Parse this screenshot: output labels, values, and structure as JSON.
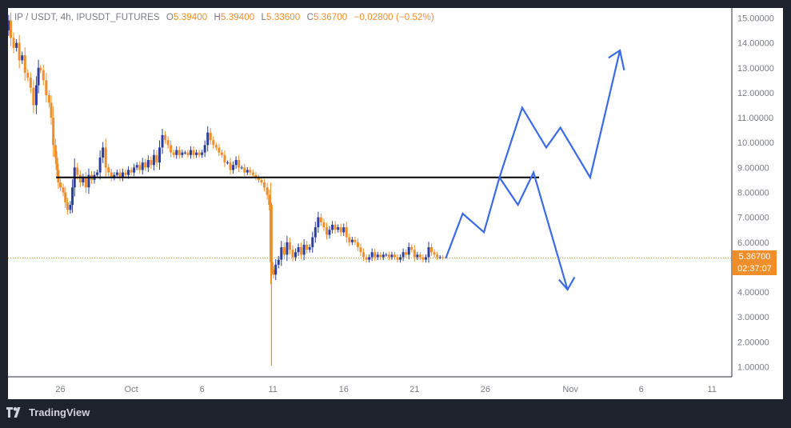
{
  "header": {
    "symbol": "IP / USDT, 4h, IPUSDT_FUTURES",
    "open_label": "O",
    "open": "5.39400",
    "high_label": "H",
    "high": "5.39400",
    "low_label": "L",
    "low": "5.33600",
    "close_label": "C",
    "close": "5.36700",
    "change": "−0.02800 (−0.52%)"
  },
  "price_tag": {
    "price": "5.36700",
    "countdown": "02:37:07"
  },
  "footer": {
    "brand": "TradingView"
  },
  "colors": {
    "up": "#2a3f9e",
    "down": "#ef8e2a",
    "projection": "#3b6ae6",
    "support_line": "#000000",
    "price_line": "#ef8e2a",
    "axis_text": "#787b86"
  },
  "chart_data": {
    "type": "candlestick",
    "interval": "4h",
    "y_axis": {
      "min": 0.6,
      "max": 15.4,
      "ticks": [
        "15.00000",
        "14.00000",
        "13.00000",
        "12.00000",
        "11.00000",
        "10.00000",
        "9.00000",
        "8.00000",
        "7.00000",
        "6.00000",
        "5.00000",
        "4.00000",
        "3.00000",
        "2.00000",
        "1.00000"
      ]
    },
    "x_axis": {
      "ticks": [
        {
          "label": "26",
          "day": 0
        },
        {
          "label": "Oct",
          "day": 5
        },
        {
          "label": "6",
          "day": 10
        },
        {
          "label": "11",
          "day": 15
        },
        {
          "label": "16",
          "day": 20
        },
        {
          "label": "21",
          "day": 25
        },
        {
          "label": "26",
          "day": 30
        },
        {
          "label": "Nov",
          "day": 36
        },
        {
          "label": "6",
          "day": 41
        },
        {
          "label": "11",
          "day": 46
        }
      ],
      "range_days": [
        -3.7,
        47.4
      ]
    },
    "price_path": [
      [
        -3.7,
        14.5
      ],
      [
        -3.6,
        14.9
      ],
      [
        -3.4,
        14.2
      ],
      [
        -3.2,
        13.8
      ],
      [
        -3.0,
        14.0
      ],
      [
        -2.8,
        13.3
      ],
      [
        -2.6,
        13.5
      ],
      [
        -2.4,
        12.8
      ],
      [
        -2.2,
        12.6
      ],
      [
        -2.0,
        12.2
      ],
      [
        -1.8,
        11.5
      ],
      [
        -1.6,
        12.3
      ],
      [
        -1.5,
        13.0
      ],
      [
        -1.3,
        12.9
      ],
      [
        -1.1,
        12.5
      ],
      [
        -0.9,
        11.9
      ],
      [
        -0.7,
        11.6
      ],
      [
        -0.6,
        11.0
      ],
      [
        -0.4,
        9.9
      ],
      [
        -0.3,
        9.4
      ],
      [
        -0.2,
        8.9
      ],
      [
        -0.1,
        8.4
      ],
      [
        0.1,
        8.2
      ],
      [
        0.3,
        8.0
      ],
      [
        0.4,
        7.6
      ],
      [
        0.6,
        7.3
      ],
      [
        0.8,
        7.5
      ],
      [
        0.9,
        8.2
      ],
      [
        1.1,
        9.0
      ],
      [
        1.3,
        8.7
      ],
      [
        1.5,
        8.4
      ],
      [
        1.7,
        8.6
      ],
      [
        1.9,
        8.2
      ],
      [
        2.1,
        8.7
      ],
      [
        2.3,
        8.5
      ],
      [
        2.5,
        8.7
      ],
      [
        2.7,
        8.8
      ],
      [
        2.9,
        9.4
      ],
      [
        3.1,
        9.8
      ],
      [
        3.3,
        9.0
      ],
      [
        3.5,
        8.8
      ],
      [
        3.7,
        8.6
      ],
      [
        3.9,
        8.7
      ],
      [
        4.1,
        8.8
      ],
      [
        4.3,
        8.6
      ],
      [
        4.5,
        8.8
      ],
      [
        4.7,
        8.7
      ],
      [
        4.9,
        8.9
      ],
      [
        5.1,
        8.8
      ],
      [
        5.3,
        9.0
      ],
      [
        5.5,
        9.1
      ],
      [
        5.7,
        8.9
      ],
      [
        5.9,
        9.2
      ],
      [
        6.1,
        9.0
      ],
      [
        6.3,
        9.3
      ],
      [
        6.5,
        9.1
      ],
      [
        6.7,
        9.5
      ],
      [
        6.9,
        9.2
      ],
      [
        7.1,
        9.8
      ],
      [
        7.3,
        10.3
      ],
      [
        7.5,
        10.1
      ],
      [
        7.7,
        9.9
      ],
      [
        7.9,
        9.6
      ],
      [
        8.1,
        9.5
      ],
      [
        8.3,
        9.7
      ],
      [
        8.5,
        9.5
      ],
      [
        8.7,
        9.6
      ],
      [
        8.9,
        9.6
      ],
      [
        9.1,
        9.5
      ],
      [
        9.3,
        9.7
      ],
      [
        9.5,
        9.5
      ],
      [
        9.7,
        9.6
      ],
      [
        9.9,
        9.5
      ],
      [
        10.1,
        9.6
      ],
      [
        10.3,
        9.9
      ],
      [
        10.5,
        10.4
      ],
      [
        10.7,
        10.1
      ],
      [
        10.9,
        9.9
      ],
      [
        11.1,
        9.8
      ],
      [
        11.3,
        9.6
      ],
      [
        11.5,
        9.5
      ],
      [
        11.7,
        9.2
      ],
      [
        11.9,
        9.2
      ],
      [
        12.1,
        8.9
      ],
      [
        12.3,
        9.1
      ],
      [
        12.5,
        9.3
      ],
      [
        12.7,
        9.0
      ],
      [
        12.9,
        9.0
      ],
      [
        13.1,
        8.8
      ],
      [
        13.3,
        8.9
      ],
      [
        13.5,
        8.8
      ],
      [
        13.7,
        8.7
      ],
      [
        13.9,
        8.6
      ],
      [
        14.1,
        8.5
      ],
      [
        14.3,
        8.4
      ],
      [
        14.5,
        8.2
      ],
      [
        14.7,
        7.9
      ],
      [
        14.8,
        7.5
      ],
      [
        14.9,
        5.2
      ],
      [
        15.0,
        4.9
      ],
      [
        15.1,
        4.7
      ],
      [
        15.3,
        5.1
      ],
      [
        15.5,
        5.3
      ],
      [
        15.7,
        5.8
      ],
      [
        15.9,
        5.5
      ],
      [
        16.1,
        6.0
      ],
      [
        16.3,
        5.7
      ],
      [
        16.5,
        5.4
      ],
      [
        16.7,
        5.6
      ],
      [
        16.9,
        5.8
      ],
      [
        17.1,
        5.5
      ],
      [
        17.3,
        5.9
      ],
      [
        17.5,
        5.7
      ],
      [
        17.7,
        5.8
      ],
      [
        17.9,
        6.2
      ],
      [
        18.1,
        6.6
      ],
      [
        18.3,
        7.0
      ],
      [
        18.5,
        6.8
      ],
      [
        18.7,
        6.6
      ],
      [
        18.9,
        6.3
      ],
      [
        19.1,
        6.5
      ],
      [
        19.3,
        6.7
      ],
      [
        19.5,
        6.5
      ],
      [
        19.7,
        6.6
      ],
      [
        19.9,
        6.4
      ],
      [
        20.1,
        6.6
      ],
      [
        20.3,
        6.2
      ],
      [
        20.5,
        6.0
      ],
      [
        20.7,
        6.1
      ],
      [
        20.9,
        6.0
      ],
      [
        21.1,
        5.8
      ],
      [
        21.3,
        5.6
      ],
      [
        21.5,
        5.4
      ],
      [
        21.7,
        5.3
      ],
      [
        21.9,
        5.4
      ],
      [
        22.1,
        5.6
      ],
      [
        22.3,
        5.4
      ],
      [
        22.5,
        5.5
      ],
      [
        22.7,
        5.4
      ],
      [
        22.9,
        5.5
      ],
      [
        23.1,
        5.5
      ],
      [
        23.3,
        5.4
      ],
      [
        23.5,
        5.5
      ],
      [
        23.7,
        5.4
      ],
      [
        23.9,
        5.3
      ],
      [
        24.1,
        5.4
      ],
      [
        24.3,
        5.6
      ],
      [
        24.5,
        5.5
      ],
      [
        24.7,
        5.8
      ],
      [
        24.9,
        5.7
      ],
      [
        25.1,
        5.4
      ],
      [
        25.3,
        5.5
      ],
      [
        25.5,
        5.4
      ],
      [
        25.7,
        5.3
      ],
      [
        25.9,
        5.4
      ],
      [
        26.1,
        5.8
      ],
      [
        26.3,
        5.6
      ],
      [
        26.5,
        5.5
      ],
      [
        26.7,
        5.4
      ],
      [
        26.9,
        5.4
      ],
      [
        27.1,
        5.37
      ]
    ],
    "spike_candle": {
      "day": 14.9,
      "open": 7.5,
      "close": 4.9,
      "high": 7.6,
      "low": 1.05
    },
    "support_line": {
      "price": 8.6,
      "from_day": -0.3,
      "to_day": 33.8
    },
    "last_price_line": {
      "price": 5.367
    },
    "projection_main": [
      [
        27.2,
        5.35
      ],
      [
        28.4,
        7.15
      ],
      [
        29.9,
        6.4
      ],
      [
        31.0,
        8.6
      ],
      [
        32.6,
        11.4
      ],
      [
        34.3,
        9.8
      ],
      [
        35.3,
        10.6
      ],
      [
        37.4,
        8.6
      ],
      [
        39.5,
        13.7
      ]
    ],
    "projection_branch": [
      [
        31.0,
        8.6
      ],
      [
        32.3,
        7.5
      ],
      [
        33.4,
        8.8
      ],
      [
        35.8,
        4.1
      ]
    ],
    "arrowheads": [
      {
        "points": [
          [
            38.7,
            13.4
          ],
          [
            39.5,
            13.7
          ],
          [
            39.8,
            12.9
          ]
        ]
      },
      {
        "points": [
          [
            35.2,
            4.5
          ],
          [
            35.8,
            4.1
          ],
          [
            36.3,
            4.6
          ]
        ]
      }
    ]
  }
}
